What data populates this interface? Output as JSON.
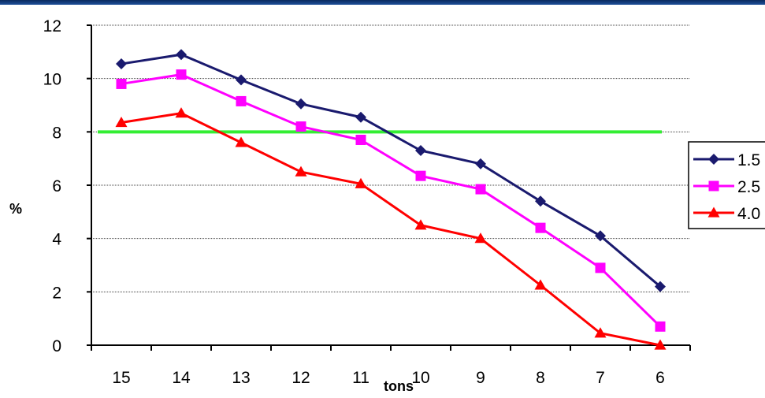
{
  "chart_data": {
    "type": "line",
    "title": "",
    "xlabel": "tons",
    "ylabel": "%",
    "categories": [
      "15",
      "14",
      "13",
      "12",
      "11",
      "10",
      "9",
      "8",
      "7",
      "6"
    ],
    "ylim": [
      0,
      12
    ],
    "yticks": [
      "0",
      "2",
      "4",
      "6",
      "8",
      "10",
      "12"
    ],
    "grid": "horizontal dotted",
    "legend_position": "right",
    "series": [
      {
        "name": "1.5",
        "color": "#1a1a6e",
        "marker": "diamond",
        "values": [
          10.55,
          10.9,
          9.95,
          9.05,
          8.55,
          7.3,
          6.8,
          5.4,
          4.1,
          2.2
        ]
      },
      {
        "name": "2.5",
        "color": "#ff00ff",
        "marker": "square",
        "values": [
          9.8,
          10.15,
          9.15,
          8.2,
          7.7,
          6.35,
          5.85,
          4.4,
          2.9,
          0.7
        ]
      },
      {
        "name": "4.0",
        "color": "#ff0000",
        "marker": "triangle",
        "values": [
          8.35,
          8.7,
          7.6,
          6.5,
          6.05,
          4.5,
          4.0,
          2.25,
          0.45,
          0.0
        ]
      }
    ],
    "reference_line": {
      "value": 8,
      "color": "#33ee33"
    }
  }
}
